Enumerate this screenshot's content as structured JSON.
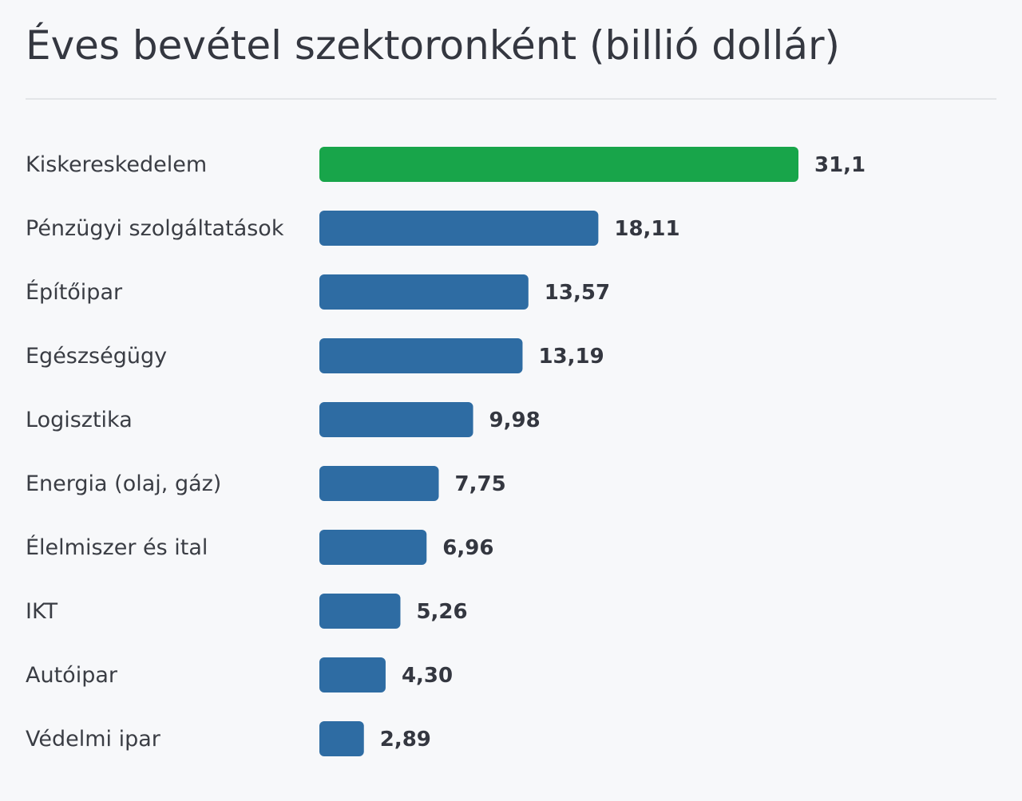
{
  "colors": {
    "highlight": "#18a54a",
    "bar": "#2e6ca3",
    "background": "#f7f8fa",
    "text": "#3a3d44"
  },
  "chart_data": {
    "type": "bar",
    "orientation": "horizontal",
    "title": "Éves bevétel szektoronként (billió dollár)",
    "categories": [
      "Kiskereskedelem",
      "Pénzügyi szolgáltatások",
      "Építőipar",
      "Egészségügy",
      "Logisztika",
      "Energia (olaj, gáz)",
      "Élelmiszer és ital",
      "IKT",
      "Autóipar",
      "Védelmi ipar"
    ],
    "values": [
      31.1,
      18.11,
      13.57,
      13.19,
      9.98,
      7.75,
      6.96,
      5.26,
      4.3,
      2.89
    ],
    "value_labels": [
      "31,1",
      "18,11",
      "13,57",
      "13,19",
      "9,98",
      "7,75",
      "6,96",
      "5,26",
      "4,30",
      "2,89"
    ],
    "highlighted_category": "Kiskereskedelem",
    "xlim": [
      0,
      31.1
    ],
    "grid": false,
    "legend": "none"
  }
}
